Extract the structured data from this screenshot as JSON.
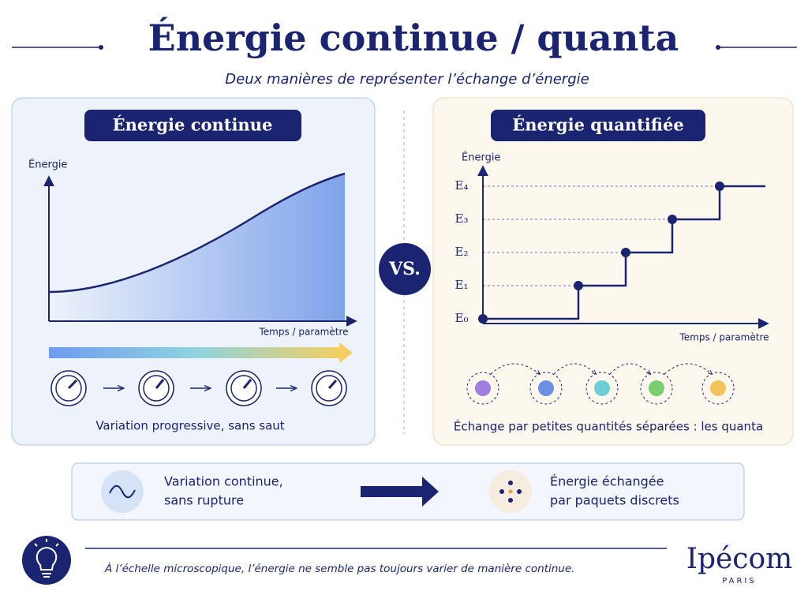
{
  "header": {
    "title": "Énergie continue / quanta",
    "subtitle": "Deux manières de représenter l’échange d’énergie"
  },
  "left": {
    "title": "Énergie continue",
    "y_label": "Énergie",
    "x_label": "Temps / paramètre",
    "caption": "Variation progressive, sans saut"
  },
  "vs": "VS.",
  "right": {
    "title": "Énergie quantifiée",
    "y_label": "Énergie",
    "x_label": "Temps / paramètre",
    "levels": [
      "E₀",
      "E₁",
      "E₂",
      "E₃",
      "E₄"
    ],
    "caption": "Échange par petites quantités séparées : les quanta"
  },
  "summary": {
    "left": [
      "Variation  continue,",
      "sans rupture"
    ],
    "right": [
      "Énergie échangée",
      "par paquets discrets"
    ]
  },
  "footer": {
    "note": "À l’échelle microscopique, l’énergie ne semble pas toujours varier de manière continue.",
    "brand": "Ipécom",
    "brand_sub": "PARIS"
  }
}
